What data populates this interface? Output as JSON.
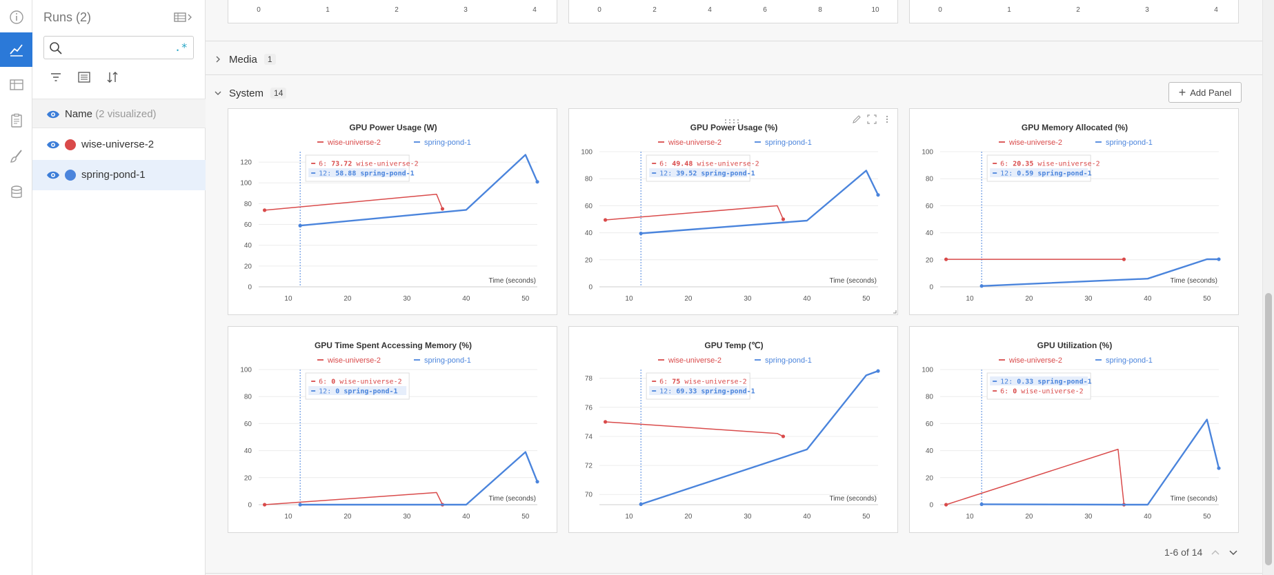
{
  "rail": {
    "items": [
      "info-icon",
      "charts-icon",
      "table-icon",
      "clipboard-icon",
      "brush-icon",
      "database-icon"
    ],
    "active": 1
  },
  "sidebar": {
    "title": "Runs (2)",
    "search": {
      "value": "",
      "placeholder": "",
      "regex_label": ".*"
    },
    "header": {
      "name_label": "Name",
      "visualized": "(2 visualized)"
    },
    "runs": [
      {
        "name": "wise-universe-2",
        "color": "#d94a4a",
        "selected": false
      },
      {
        "name": "spring-pond-1",
        "color": "#4a84dc",
        "selected": true
      }
    ]
  },
  "top_panels": [
    {
      "ticks": [
        "0",
        "1",
        "2",
        "3",
        "4"
      ]
    },
    {
      "ticks": [
        "0",
        "2",
        "4",
        "6",
        "8",
        "10"
      ]
    },
    {
      "ticks": [
        "0",
        "1",
        "2",
        "3",
        "4"
      ]
    }
  ],
  "sections": {
    "media": {
      "title": "Media",
      "count": "1"
    },
    "system": {
      "title": "System",
      "count": "14"
    }
  },
  "add_panel_label": "Add Panel",
  "pager": {
    "label": "1-6 of 14"
  },
  "colors": {
    "red": "#d94a4a",
    "blue": "#4a84dc"
  },
  "chart_data": [
    {
      "type": "line",
      "title": "GPU Power Usage (W)",
      "xlabel": "Time (seconds)",
      "xlim": [
        5,
        52
      ],
      "xticks": [
        10,
        20,
        30,
        40,
        50
      ],
      "ylim": [
        0,
        130
      ],
      "yticks": [
        0,
        20,
        40,
        60,
        80,
        100,
        120
      ],
      "hover_x": 12,
      "series": [
        {
          "name": "wise-universe-2",
          "x": [
            6,
            35,
            36
          ],
          "y": [
            73.72,
            89,
            75
          ]
        },
        {
          "name": "spring-pond-1",
          "x": [
            12,
            40,
            50,
            52
          ],
          "y": [
            58.88,
            74,
            127,
            101
          ]
        }
      ],
      "tooltip": [
        {
          "label": "6:",
          "value": "73.72",
          "name": "wise-universe-2",
          "series": 0
        },
        {
          "label": "12:",
          "value": "58.88",
          "name": "spring-pond-1",
          "series": 1
        }
      ]
    },
    {
      "type": "line",
      "title": "GPU Power Usage (%)",
      "xlabel": "Time (seconds)",
      "xlim": [
        5,
        52
      ],
      "xticks": [
        10,
        20,
        30,
        40,
        50
      ],
      "ylim": [
        0,
        100
      ],
      "yticks": [
        0,
        20,
        40,
        60,
        80,
        100
      ],
      "hover_x": 12,
      "series": [
        {
          "name": "wise-universe-2",
          "x": [
            6,
            35,
            36
          ],
          "y": [
            49.48,
            60,
            50
          ]
        },
        {
          "name": "spring-pond-1",
          "x": [
            12,
            40,
            50,
            52
          ],
          "y": [
            39.52,
            49,
            86,
            68
          ]
        }
      ],
      "tooltip": [
        {
          "label": "6:",
          "value": "49.48",
          "name": "wise-universe-2",
          "series": 0
        },
        {
          "label": "12:",
          "value": "39.52",
          "name": "spring-pond-1",
          "series": 1
        }
      ]
    },
    {
      "type": "line",
      "title": "GPU Memory Allocated (%)",
      "xlabel": "Time (seconds)",
      "xlim": [
        5,
        52
      ],
      "xticks": [
        10,
        20,
        30,
        40,
        50
      ],
      "ylim": [
        0,
        100
      ],
      "yticks": [
        0,
        20,
        40,
        60,
        80,
        100
      ],
      "hover_x": 12,
      "series": [
        {
          "name": "wise-universe-2",
          "x": [
            6,
            36
          ],
          "y": [
            20.35,
            20.35
          ]
        },
        {
          "name": "spring-pond-1",
          "x": [
            12,
            40,
            50,
            52
          ],
          "y": [
            0.59,
            6,
            20.4,
            20.4
          ]
        }
      ],
      "tooltip": [
        {
          "label": "6:",
          "value": "20.35",
          "name": "wise-universe-2",
          "series": 0
        },
        {
          "label": "12:",
          "value": "0.59",
          "name": "spring-pond-1",
          "series": 1
        }
      ]
    },
    {
      "type": "line",
      "title": "GPU Time Spent Accessing Memory (%)",
      "xlabel": "Time (seconds)",
      "xlim": [
        5,
        52
      ],
      "xticks": [
        10,
        20,
        30,
        40,
        50
      ],
      "ylim": [
        0,
        100
      ],
      "yticks": [
        0,
        20,
        40,
        60,
        80,
        100
      ],
      "hover_x": 12,
      "series": [
        {
          "name": "wise-universe-2",
          "x": [
            6,
            35,
            36
          ],
          "y": [
            0,
            9,
            0
          ]
        },
        {
          "name": "spring-pond-1",
          "x": [
            12,
            40,
            50,
            52
          ],
          "y": [
            0,
            0,
            39,
            17
          ]
        }
      ],
      "tooltip": [
        {
          "label": "6:",
          "value": "0",
          "name": "wise-universe-2",
          "series": 0
        },
        {
          "label": "12:",
          "value": "0",
          "name": "spring-pond-1",
          "series": 1
        }
      ]
    },
    {
      "type": "line",
      "title": "GPU Temp (℃)",
      "xlabel": "Time (seconds)",
      "xlim": [
        5,
        52
      ],
      "xticks": [
        10,
        20,
        30,
        40,
        50
      ],
      "ylim": [
        69.3,
        78.6
      ],
      "yticks": [
        70,
        72,
        74,
        76,
        78
      ],
      "hover_x": 12,
      "series": [
        {
          "name": "wise-universe-2",
          "x": [
            6,
            35,
            36
          ],
          "y": [
            75,
            74.2,
            74
          ]
        },
        {
          "name": "spring-pond-1",
          "x": [
            12,
            40,
            50,
            52
          ],
          "y": [
            69.33,
            73.1,
            78.2,
            78.5
          ]
        }
      ],
      "tooltip": [
        {
          "label": "6:",
          "value": "75",
          "name": "wise-universe-2",
          "series": 0
        },
        {
          "label": "12:",
          "value": "69.33",
          "name": "spring-pond-1",
          "series": 1
        }
      ]
    },
    {
      "type": "line",
      "title": "GPU Utilization (%)",
      "xlabel": "Time (seconds)",
      "xlim": [
        5,
        52
      ],
      "xticks": [
        10,
        20,
        30,
        40,
        50
      ],
      "ylim": [
        0,
        100
      ],
      "yticks": [
        0,
        20,
        40,
        60,
        80,
        100
      ],
      "hover_x": 12,
      "series": [
        {
          "name": "wise-universe-2",
          "x": [
            6,
            35,
            36
          ],
          "y": [
            0,
            41,
            0
          ]
        },
        {
          "name": "spring-pond-1",
          "x": [
            12,
            36,
            40,
            50,
            52
          ],
          "y": [
            0.33,
            0,
            0,
            63,
            27
          ]
        }
      ],
      "tooltip": [
        {
          "label": "12:",
          "value": "0.33",
          "name": "spring-pond-1",
          "series": 1
        },
        {
          "label": "6:",
          "value": "0",
          "name": "wise-universe-2",
          "series": 0
        }
      ]
    }
  ]
}
